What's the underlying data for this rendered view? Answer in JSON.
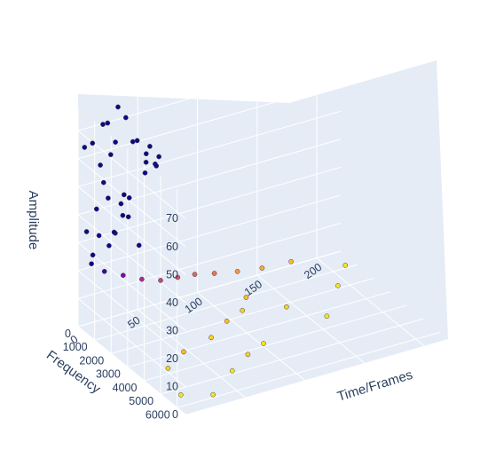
{
  "chart_data": {
    "type": "scatter",
    "subtype": "scatter3d",
    "title": "",
    "xlabel": "Time/Frames",
    "ylabel": "Frequency",
    "zlabel": "Amplitude",
    "xlim": [
      0,
      220
    ],
    "ylim": [
      0,
      6500
    ],
    "zlim": [
      0,
      78
    ],
    "x_ticks": [
      "0",
      "50",
      "100",
      "150",
      "200"
    ],
    "y_ticks": [
      "0",
      "1000",
      "2000",
      "3000",
      "4000",
      "5000",
      "6000"
    ],
    "z_ticks": [
      "0",
      "10",
      "20",
      "30",
      "40",
      "50",
      "60",
      "70"
    ],
    "grid": true,
    "colors": {
      "scene_bg": "#e5ecf6",
      "grid": "#ffffff",
      "text": "#2a3f5f",
      "low": "#f5f13c",
      "mid": "#b15a7a",
      "high": "#1b1a6b",
      "marker_edge": "#444444"
    },
    "colorscale": [
      "#f0f921",
      "#fdb42f",
      "#ed7953",
      "#cc4778",
      "#9c179e",
      "#5c01a6",
      "#0d0887"
    ],
    "series": [
      {
        "points": [
          [
            2,
            250,
            65
          ],
          [
            2,
            1400,
            58
          ],
          [
            3,
            900,
            46
          ],
          [
            3,
            300,
            35
          ],
          [
            4,
            600,
            28
          ],
          [
            5,
            450,
            24
          ],
          [
            8,
            300,
            66
          ],
          [
            9,
            700,
            60
          ],
          [
            10,
            1100,
            50
          ],
          [
            9,
            1600,
            40
          ],
          [
            12,
            400,
            33
          ],
          [
            16,
            350,
            72
          ],
          [
            17,
            750,
            63
          ],
          [
            18,
            1300,
            48
          ],
          [
            19,
            500,
            29
          ],
          [
            22,
            200,
            71
          ],
          [
            23,
            600,
            66
          ],
          [
            25,
            900,
            41
          ],
          [
            26,
            300,
            32
          ],
          [
            30,
            250,
            76
          ],
          [
            31,
            650,
            74
          ],
          [
            32,
            1000,
            67
          ],
          [
            33,
            400,
            45
          ],
          [
            36,
            500,
            44
          ],
          [
            38,
            300,
            36
          ],
          [
            40,
            800,
            28
          ],
          [
            44,
            400,
            63
          ],
          [
            46,
            800,
            60
          ],
          [
            48,
            1200,
            58
          ],
          [
            50,
            500,
            55
          ],
          [
            52,
            300,
            50
          ],
          [
            56,
            300,
            59
          ],
          [
            58,
            700,
            57
          ],
          [
            60,
            400,
            52
          ],
          [
            20,
            150,
            18
          ],
          [
            35,
            200,
            15
          ],
          [
            50,
            250,
            12
          ],
          [
            65,
            300,
            10
          ],
          [
            80,
            250,
            9
          ],
          [
            95,
            200,
            8
          ],
          [
            110,
            300,
            7
          ],
          [
            130,
            250,
            5
          ],
          [
            150,
            300,
            4
          ],
          [
            175,
            250,
            3
          ],
          [
            120,
            1500,
            3
          ],
          [
            140,
            2500,
            2
          ],
          [
            160,
            3500,
            1
          ],
          [
            190,
            2000,
            1
          ],
          [
            210,
            1000,
            1
          ],
          [
            100,
            4000,
            1
          ],
          [
            80,
            4500,
            2
          ],
          [
            60,
            5000,
            1
          ],
          [
            40,
            3500,
            3
          ],
          [
            20,
            4000,
            2
          ],
          [
            10,
            5500,
            1
          ],
          [
            30,
            6000,
            1
          ],
          [
            70,
            3000,
            2
          ],
          [
            90,
            2500,
            3
          ],
          [
            110,
            2000,
            2
          ]
        ]
      }
    ]
  }
}
